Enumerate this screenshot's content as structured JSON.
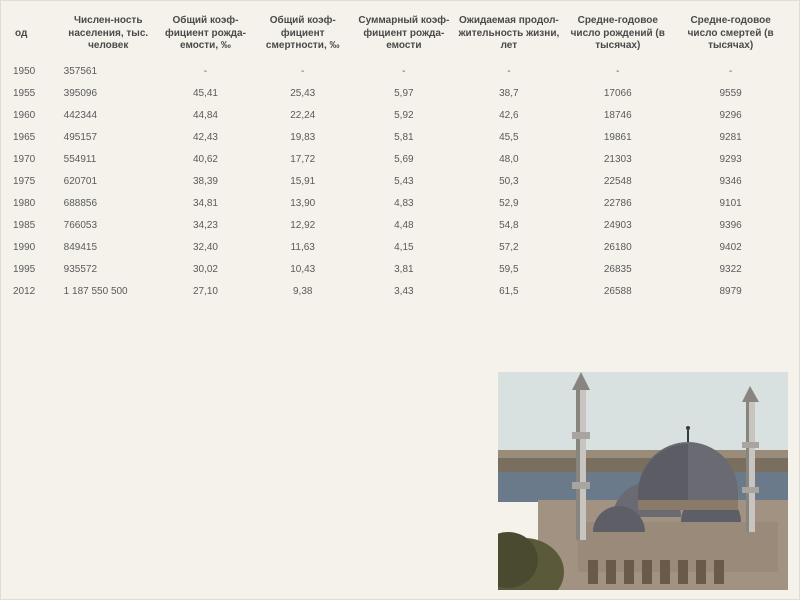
{
  "table": {
    "background_color": "#f5f2eb",
    "header_color": "#4a4a4a",
    "cell_color": "#5a5a5a",
    "header_fontsize": 10,
    "cell_fontsize": 10,
    "columns": [
      "од",
      "Числен-ность населения, тыс. человек",
      "Общий коэф-фициент рожда-емости, ‰",
      "Общий коэф-фициент смертности, ‰",
      "Суммарный коэф-фициент рожда-емости",
      "Ожидаемая продол-жительность жизни, лет",
      "Средне-годовое число рождений (в тысячах)",
      "Средне-годовое число смертей (в тысячах)"
    ],
    "rows": [
      [
        "1950",
        "357561",
        "-",
        "-",
        "-",
        "-",
        "-",
        "-"
      ],
      [
        "1955",
        "395096",
        "45,41",
        "25,43",
        "5,97",
        "38,7",
        "17066",
        "9559"
      ],
      [
        "1960",
        "442344",
        "44,84",
        "22,24",
        "5,92",
        "42,6",
        "18746",
        "9296"
      ],
      [
        "1965",
        "495157",
        "42,43",
        "19,83",
        "5,81",
        "45,5",
        "19861",
        "9281"
      ],
      [
        "1970",
        "554911",
        "40,62",
        "17,72",
        "5,69",
        "48,0",
        "21303",
        "9293"
      ],
      [
        "1975",
        "620701",
        "38,39",
        "15,91",
        "5,43",
        "50,3",
        "22548",
        "9346"
      ],
      [
        "1980",
        "688856",
        "34,81",
        "13,90",
        "4,83",
        "52,9",
        "22786",
        "9101"
      ],
      [
        "1985",
        "766053",
        "34,23",
        "12,92",
        "4,48",
        "54,8",
        "24903",
        "9396"
      ],
      [
        "1990",
        "849415",
        "32,40",
        "11,63",
        "4,15",
        "57,2",
        "26180",
        "9402"
      ],
      [
        "1995",
        "935572",
        "30,02",
        "10,43",
        "3,81",
        "59,5",
        "26835",
        "9322"
      ],
      [
        "2012",
        "1 187 550 500",
        "27,10",
        "9,38",
        "3,43",
        "61,5",
        "26588",
        "8979"
      ]
    ],
    "column_widths_pct": [
      6,
      13,
      12,
      13,
      13,
      14,
      14,
      15
    ]
  },
  "photo": {
    "description": "mosque-istanbul",
    "sky_color": "#d9e0e0",
    "city_color": "#8a7a6a",
    "water_color": "#6b7a8a",
    "dome_color": "#6a6a72",
    "dome_shadow": "#4e4e56",
    "wall_color": "#aa9a8a",
    "wall_shadow": "#8a7a6a",
    "minaret_color": "#c8c5c0",
    "minaret_shadow": "#888580"
  }
}
